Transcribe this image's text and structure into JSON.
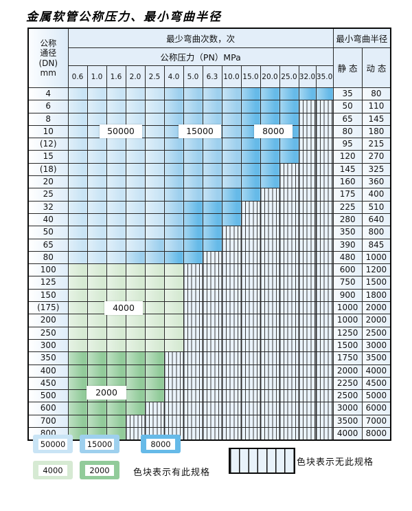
{
  "title": "金属软管公称压力、最小弯曲半径",
  "table": {
    "header": {
      "dn_lines": [
        "公称",
        "通径",
        "(DN)",
        "mm"
      ],
      "cycles_header": "最少弯曲次数，次",
      "pressure_header": "公称压力（PN）MPa",
      "pressure_ticks": [
        "0.6",
        "1.0",
        "1.6",
        "2.0",
        "2.5",
        "4.0",
        "5.0",
        "6.3",
        "10.0",
        "15.0",
        "20.0",
        "25.0",
        "32.0",
        "35.0"
      ],
      "radius_header": "最小弯曲半径",
      "static_label": "静 态",
      "dynamic_label": "动 态"
    },
    "band_legend_note": "b: color band family (blue cycles / g4 = 4000 green / g2 = 2000 green); le: last light-shade column; me: last medium-shade column; ce: last colored column (1-14), remaining columns hatched = not available",
    "rows": [
      {
        "dn": "4",
        "st": "35",
        "dy": "80",
        "b": "blue",
        "le": 5,
        "me": 9,
        "ce": 14
      },
      {
        "dn": "6",
        "st": "50",
        "dy": "110",
        "b": "blue",
        "le": 5,
        "me": 9,
        "ce": 12
      },
      {
        "dn": "8",
        "st": "65",
        "dy": "145",
        "b": "blue",
        "le": 5,
        "me": 9,
        "ce": 12
      },
      {
        "dn": "10",
        "st": "80",
        "dy": "180",
        "b": "blue",
        "le": 5,
        "me": 9,
        "ce": 12
      },
      {
        "dn": "(12)",
        "st": "95",
        "dy": "215",
        "b": "blue",
        "le": 5,
        "me": 9,
        "ce": 12
      },
      {
        "dn": "15",
        "st": "120",
        "dy": "270",
        "b": "blue",
        "le": 5,
        "me": 9,
        "ce": 12
      },
      {
        "dn": "(18)",
        "st": "145",
        "dy": "325",
        "b": "blue",
        "le": 5,
        "me": 9,
        "ce": 11
      },
      {
        "dn": "20",
        "st": "160",
        "dy": "360",
        "b": "blue",
        "le": 5,
        "me": 9,
        "ce": 11
      },
      {
        "dn": "25",
        "st": "175",
        "dy": "400",
        "b": "blue",
        "le": 5,
        "me": 8,
        "ce": 10
      },
      {
        "dn": "32",
        "st": "225",
        "dy": "510",
        "b": "blue",
        "le": 5,
        "me": 6,
        "ce": 9
      },
      {
        "dn": "40",
        "st": "280",
        "dy": "640",
        "b": "blue",
        "le": 5,
        "me": 6,
        "ce": 9
      },
      {
        "dn": "50",
        "st": "350",
        "dy": "800",
        "b": "blue",
        "le": 5,
        "me": 6,
        "ce": 8
      },
      {
        "dn": "65",
        "st": "390",
        "dy": "845",
        "b": "blue",
        "le": 4,
        "me": 6,
        "ce": 8
      },
      {
        "dn": "80",
        "st": "480",
        "dy": "1000",
        "b": "blue",
        "le": 3,
        "me": 5,
        "ce": 7
      },
      {
        "dn": "100",
        "st": "600",
        "dy": "1200",
        "b": "g4",
        "ce": 6
      },
      {
        "dn": "125",
        "st": "750",
        "dy": "1500",
        "b": "g4",
        "ce": 6
      },
      {
        "dn": "150",
        "st": "900",
        "dy": "1800",
        "b": "g4",
        "ce": 6
      },
      {
        "dn": "(175)",
        "st": "1000",
        "dy": "2000",
        "b": "g4",
        "ce": 6
      },
      {
        "dn": "200",
        "st": "1000",
        "dy": "2000",
        "b": "g4",
        "ce": 6
      },
      {
        "dn": "250",
        "st": "1250",
        "dy": "2500",
        "b": "g4",
        "ce": 6
      },
      {
        "dn": "300",
        "st": "1500",
        "dy": "3000",
        "b": "g4",
        "ce": 6
      },
      {
        "dn": "350",
        "st": "1750",
        "dy": "3500",
        "b": "g2",
        "ce": 5
      },
      {
        "dn": "400",
        "st": "2000",
        "dy": "4000",
        "b": "g2",
        "ce": 5
      },
      {
        "dn": "450",
        "st": "2250",
        "dy": "4500",
        "b": "g2",
        "ce": 5
      },
      {
        "dn": "500",
        "st": "2500",
        "dy": "5000",
        "b": "g2",
        "ce": 5
      },
      {
        "dn": "600",
        "st": "3000",
        "dy": "6000",
        "b": "g2",
        "ce": 4
      },
      {
        "dn": "700",
        "st": "3500",
        "dy": "7000",
        "b": "g2",
        "ce": 3
      },
      {
        "dn": "800",
        "st": "4000",
        "dy": "8000",
        "b": "g2",
        "ce": 3
      }
    ]
  },
  "overlays": [
    {
      "label": "50000"
    },
    {
      "label": "15000"
    },
    {
      "label": "8000"
    },
    {
      "label": "4000"
    },
    {
      "label": "2000"
    }
  ],
  "legend": {
    "swatches": [
      {
        "label": "50000",
        "color": "#c9e4f5"
      },
      {
        "label": "15000",
        "color": "#9ed0ee"
      },
      {
        "label": "8000",
        "color": "#66bae8"
      },
      {
        "label": "4000",
        "color": "#d6ead3"
      },
      {
        "label": "2000",
        "color": "#92cb9a"
      }
    ],
    "available_note": "色块表示有此规格",
    "unavailable_note": "色块表示无此规格"
  },
  "colors": {
    "cycles_50000": "#c9e4f5",
    "cycles_15000": "#9ed0ee",
    "cycles_8000": "#66bae8",
    "cycles_4000": "#d6ead3",
    "cycles_2000": "#92cb9a",
    "hatch_fill": "#eaf3fb",
    "header_fill": "#e3eef9"
  }
}
